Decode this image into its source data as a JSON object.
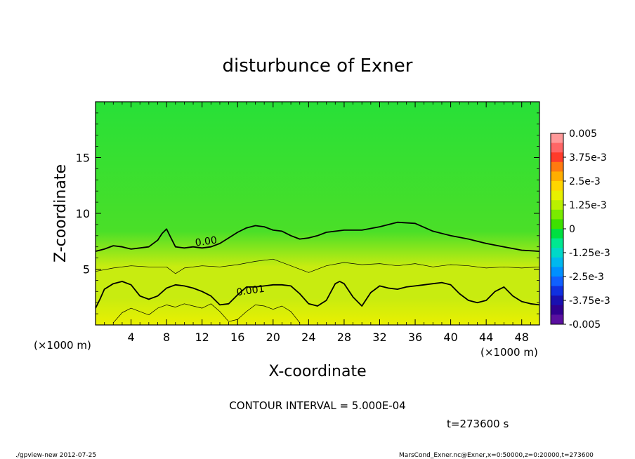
{
  "chart_data": {
    "type": "heatmap",
    "title": "disturbunce of Exner",
    "xlabel": "X-coordinate",
    "ylabel": "Z-coordinate",
    "x_unit_left": "(×1000 m)",
    "x_unit_right": "(×1000 m)",
    "xlim": [
      0,
      50
    ],
    "ylim": [
      0,
      20
    ],
    "x_ticks": [
      4,
      8,
      12,
      16,
      20,
      24,
      28,
      32,
      36,
      40,
      44,
      48
    ],
    "y_ticks": [
      5,
      10,
      15
    ],
    "contour_interval_text": "CONTOUR INTERVAL = 5.000E-04",
    "time_text": "t=273600 s",
    "footer_left": "./gpview-new  2012-07-25",
    "footer_right": "MarsCond_Exner.nc@Exner,x=0:50000,z=0:20000,t=273600",
    "contours": [
      {
        "label": "0.00",
        "level": 0.0,
        "bold": true,
        "x": [
          0,
          1,
          2,
          3,
          4,
          5,
          6,
          7,
          7.5,
          8,
          8.5,
          9,
          10,
          11,
          12,
          13,
          14,
          15,
          16,
          17,
          18,
          19,
          20,
          21,
          22,
          23,
          24,
          25,
          26,
          28,
          30,
          32,
          34,
          36,
          38,
          40,
          42,
          44,
          46,
          48,
          50
        ],
        "z": [
          6.6,
          6.8,
          7.1,
          7.0,
          6.8,
          6.9,
          7.0,
          7.6,
          8.2,
          8.6,
          7.8,
          7.0,
          6.9,
          7.0,
          6.9,
          7.0,
          7.3,
          7.8,
          8.3,
          8.7,
          8.9,
          8.8,
          8.5,
          8.4,
          8.0,
          7.7,
          7.8,
          8.0,
          8.3,
          8.5,
          8.5,
          8.8,
          9.2,
          9.1,
          8.4,
          8.0,
          7.7,
          7.3,
          7.0,
          6.7,
          6.6
        ],
        "label_x": 12.5,
        "label_z": 7.2
      },
      {
        "label": "",
        "level": 0.0005,
        "bold": false,
        "x": [
          0,
          2,
          4,
          6,
          8,
          9,
          10,
          12,
          14,
          16,
          18,
          20,
          22,
          24,
          26,
          28,
          30,
          32,
          34,
          36,
          38,
          40,
          42,
          44,
          46,
          48,
          50
        ],
        "z": [
          4.8,
          5.1,
          5.3,
          5.2,
          5.2,
          4.6,
          5.1,
          5.3,
          5.2,
          5.4,
          5.7,
          5.9,
          5.3,
          4.7,
          5.3,
          5.6,
          5.4,
          5.5,
          5.3,
          5.5,
          5.2,
          5.4,
          5.3,
          5.1,
          5.2,
          5.1,
          5.2
        ]
      },
      {
        "label": "0.001",
        "level": 0.001,
        "bold": true,
        "x": [
          0,
          0.5,
          1,
          2,
          3,
          4,
          5,
          6,
          7,
          8,
          9,
          10,
          11,
          12,
          13,
          14,
          15,
          16,
          17,
          18,
          19,
          20,
          21,
          22,
          23,
          24,
          25,
          26,
          27,
          27.5,
          28,
          29,
          30,
          31,
          32,
          33,
          34,
          35,
          36,
          37,
          38,
          39,
          40,
          41,
          42,
          43,
          44,
          45,
          46,
          47,
          48,
          49,
          50
        ],
        "z": [
          1.5,
          2.3,
          3.2,
          3.7,
          3.9,
          3.6,
          2.6,
          2.3,
          2.6,
          3.3,
          3.6,
          3.5,
          3.3,
          3.0,
          2.6,
          1.8,
          1.9,
          2.7,
          3.4,
          3.4,
          3.5,
          3.6,
          3.6,
          3.5,
          2.8,
          1.9,
          1.7,
          2.2,
          3.7,
          3.9,
          3.7,
          2.5,
          1.7,
          2.9,
          3.5,
          3.3,
          3.2,
          3.4,
          3.5,
          3.6,
          3.7,
          3.8,
          3.6,
          2.8,
          2.2,
          2.0,
          2.2,
          3.0,
          3.4,
          2.6,
          2.1,
          1.9,
          1.8
        ],
        "label_x": 17.5,
        "label_z": 2.8
      },
      {
        "label": "",
        "level": 0.0015,
        "bold": false,
        "x": [
          2,
          3,
          4,
          5,
          6,
          7,
          8,
          9,
          10,
          11,
          12,
          13,
          14,
          15,
          16,
          17,
          18,
          19,
          20,
          21,
          22,
          23
        ],
        "z": [
          0.2,
          1.1,
          1.5,
          1.2,
          0.9,
          1.5,
          1.8,
          1.6,
          1.9,
          1.7,
          1.5,
          1.9,
          1.2,
          0.3,
          0.5,
          1.2,
          1.8,
          1.7,
          1.4,
          1.7,
          1.2,
          0.2
        ]
      }
    ],
    "colorbar": {
      "min": -0.005,
      "max": 0.005,
      "labels": [
        "0.005",
        "3.75e-3",
        "2.5e-3",
        "1.25e-3",
        "0",
        "-1.25e-3",
        "-2.5e-3",
        "-3.75e-3",
        "-0.005"
      ],
      "colors": [
        "#ff9999",
        "#ff6666",
        "#ff3b2a",
        "#ff7a10",
        "#ffae00",
        "#ffd500",
        "#e8f000",
        "#baf000",
        "#7aeb00",
        "#3de000",
        "#00e040",
        "#00e890",
        "#00d8c8",
        "#00b8ee",
        "#0090ff",
        "#1060ff",
        "#1030e0",
        "#1a10b0",
        "#300090",
        "#5a10a0"
      ]
    },
    "colors": {
      "top": "#28e038",
      "mid": "#4adf28",
      "low": "#c8ec10",
      "bottom": "#eaf000"
    }
  }
}
